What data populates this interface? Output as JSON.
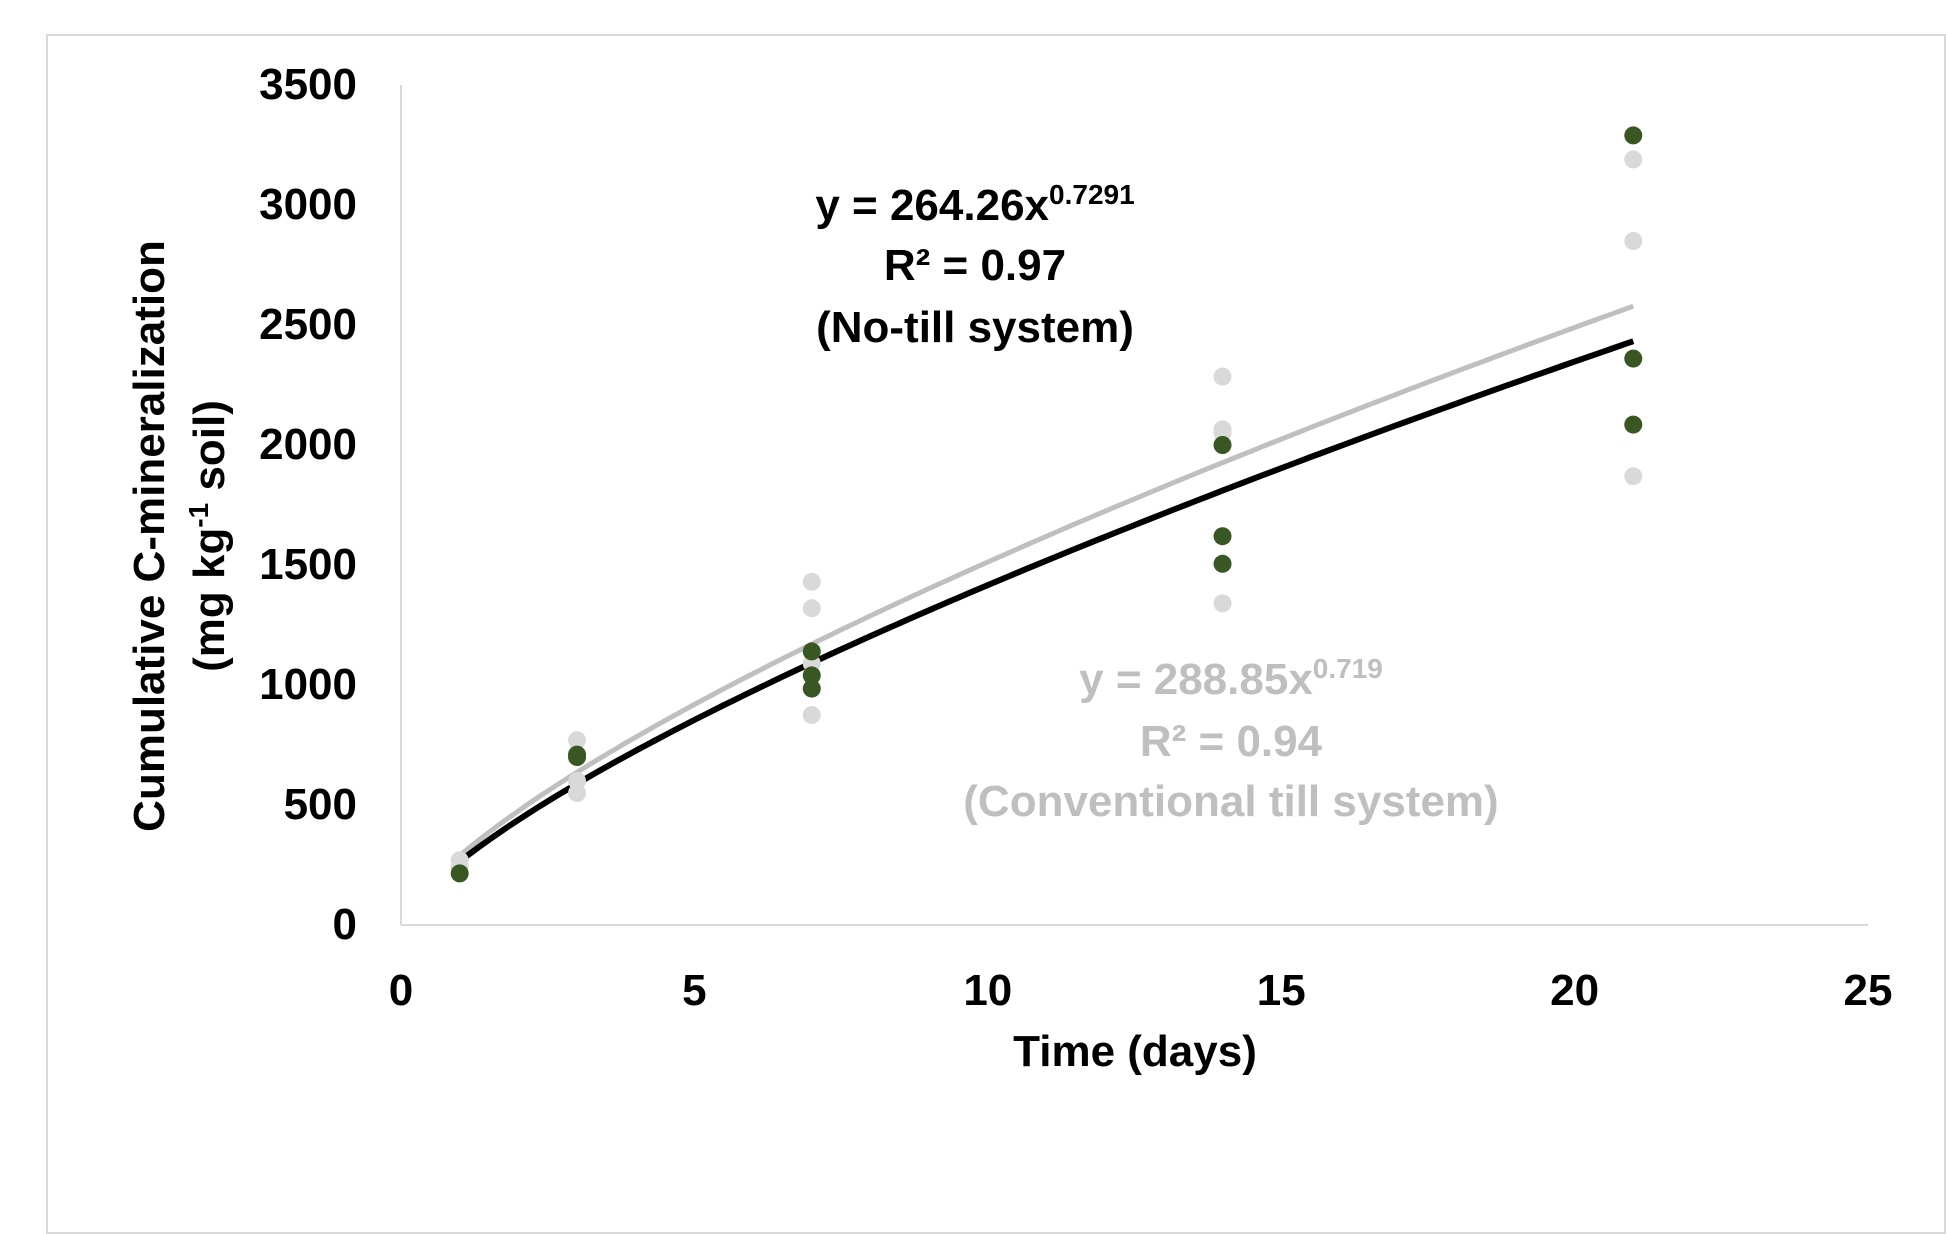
{
  "chart_data": {
    "type": "scatter",
    "xlabel": "Time (days)",
    "ylabel": "Cumulative C-mineralization",
    "ylabel_units_prefix": "(mg kg",
    "ylabel_units_sup": "-1",
    "ylabel_units_suffix": " soil)",
    "xlim": [
      0,
      25
    ],
    "ylim": [
      0,
      3500
    ],
    "xticks": [
      0,
      5,
      10,
      15,
      20,
      25
    ],
    "yticks": [
      0,
      500,
      1000,
      1500,
      2000,
      2500,
      3000,
      3500
    ],
    "grid": false,
    "legend": "none",
    "series": [
      {
        "color": "#385723",
        "points": [
          [
            1,
            215
          ],
          [
            3,
            700
          ],
          [
            3,
            710
          ],
          [
            7,
            985
          ],
          [
            7,
            1040
          ],
          [
            7,
            1140
          ],
          [
            14,
            1505
          ],
          [
            14,
            1620
          ],
          [
            14,
            2000
          ],
          [
            21,
            2085
          ],
          [
            21,
            2360
          ],
          [
            21,
            3290
          ]
        ]
      },
      {
        "color": "#d9d9d9",
        "points": [
          [
            1,
            245
          ],
          [
            1,
            270
          ],
          [
            3,
            550
          ],
          [
            3,
            600
          ],
          [
            3,
            770
          ],
          [
            7,
            875
          ],
          [
            7,
            1090
          ],
          [
            7,
            1320
          ],
          [
            7,
            1430
          ],
          [
            14,
            1340
          ],
          [
            14,
            2050
          ],
          [
            14,
            2065
          ],
          [
            14,
            2285
          ],
          [
            21,
            1870
          ],
          [
            21,
            2850
          ],
          [
            21,
            3190
          ]
        ]
      }
    ],
    "trendlines": [
      {
        "type": "power",
        "a": 264.26,
        "b": 0.7291,
        "color": "#000000",
        "eq_prefix": "y = 264.26x",
        "eq_exp": "0.7291",
        "r2": "R² = 0.97",
        "system": "(No-till system)"
      },
      {
        "type": "power",
        "a": 288.85,
        "b": 0.719,
        "color": "#bfbfbf",
        "eq_prefix": "y = 288.85x",
        "eq_exp": "0.719",
        "r2": "R² = 0.94",
        "system": "(Conventional till system)"
      }
    ]
  }
}
